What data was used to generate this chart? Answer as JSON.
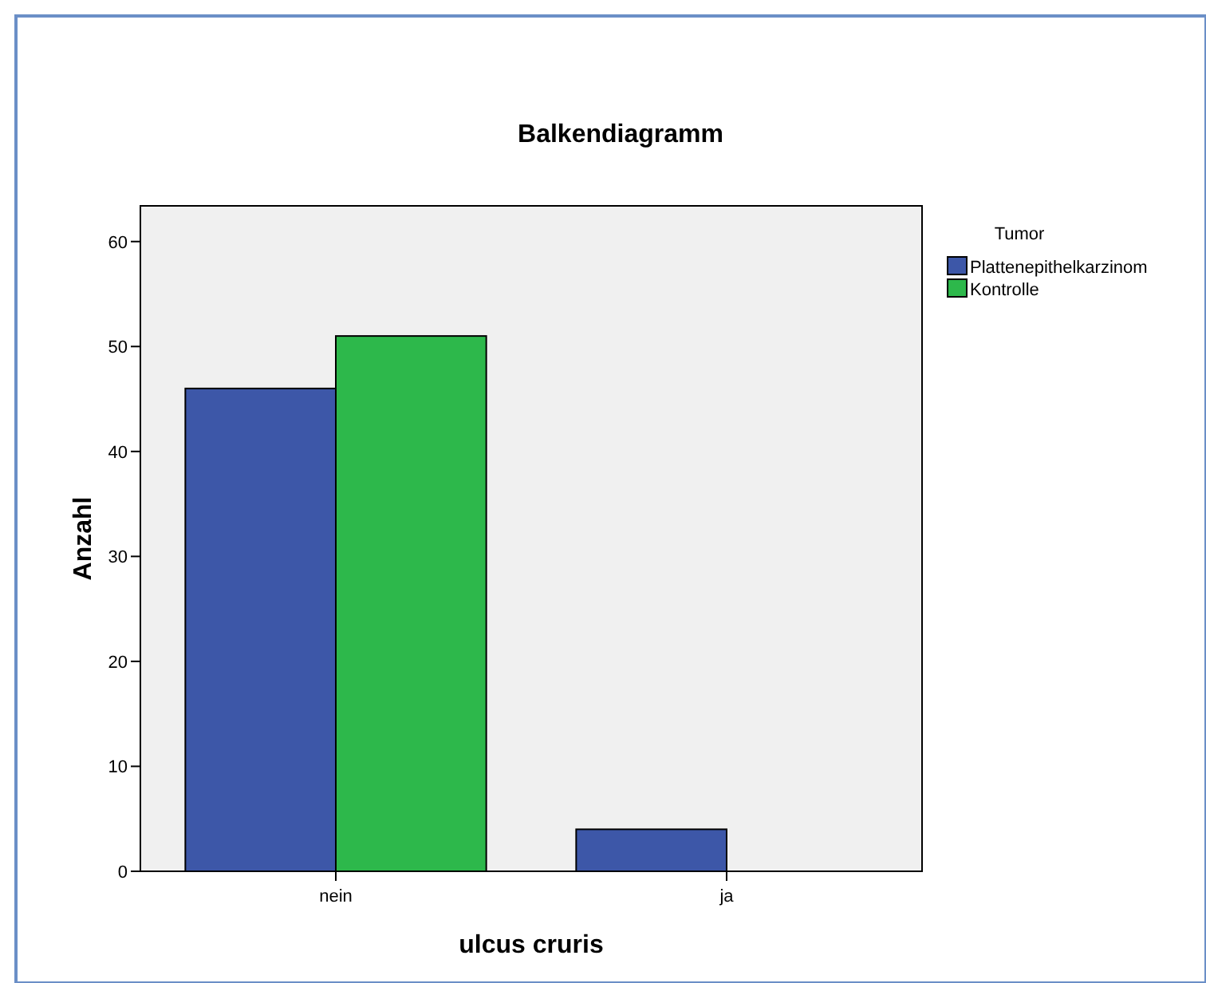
{
  "chart_data": {
    "type": "bar",
    "title": "Balkendiagramm",
    "xlabel": "ulcus cruris",
    "ylabel": "Anzahl",
    "legend_title": "Tumor",
    "categories": [
      "nein",
      "ja"
    ],
    "series": [
      {
        "name": "Plattenepithelkarzinom",
        "color": "#3d57a8",
        "values": [
          46,
          4
        ]
      },
      {
        "name": "Kontrolle",
        "color": "#2db84b",
        "values": [
          51,
          null
        ]
      }
    ],
    "ylim": [
      0,
      63.4
    ],
    "yticks": [
      0,
      10,
      20,
      30,
      40,
      50,
      60
    ],
    "grid": false,
    "legend": "right"
  }
}
